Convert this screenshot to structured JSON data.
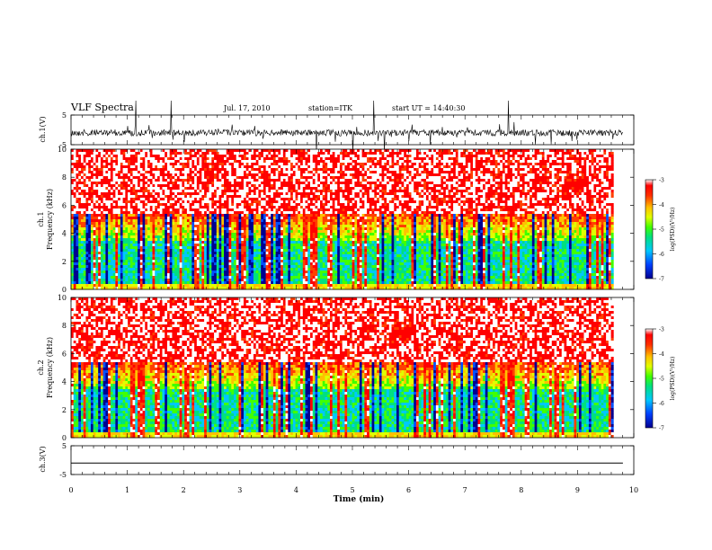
{
  "header": {
    "title": "VLF Spectra",
    "date": "Jul. 17, 2010",
    "station": "station=ITK",
    "start": "start UT = 14:40:30"
  },
  "chart_data": [
    {
      "type": "line",
      "panel": "ch1-waveform",
      "ylabel": "ch.1(V)",
      "ylim": [
        -5,
        5
      ],
      "yticks": [
        "5",
        "-5"
      ],
      "xlim": [
        0,
        10
      ],
      "signal": "noisy waveform near -1 V with frequent impulsive spikes",
      "baseline": -1
    },
    {
      "type": "heatmap",
      "panel": "ch1-spectrogram",
      "ylabel_top": "ch.1",
      "ylabel": "Frequency (kHz)",
      "ylim": [
        0,
        10
      ],
      "yticks": [
        "0",
        "2",
        "4",
        "6",
        "8",
        "10"
      ],
      "xlim": [
        0,
        9.83
      ],
      "colorbar": {
        "label": "log(PSD)(V²/Hz)",
        "range": [
          -7,
          -3
        ],
        "ticks": [
          "-3",
          "-4",
          "-5",
          "-6",
          "-7"
        ]
      }
    },
    {
      "type": "heatmap",
      "panel": "ch2-spectrogram",
      "ylabel_top": "ch.2",
      "ylabel": "Frequency (kHz)",
      "ylim": [
        0,
        10
      ],
      "yticks": [
        "0",
        "2",
        "4",
        "6",
        "8",
        "10"
      ],
      "xlim": [
        0,
        9.83
      ],
      "colorbar": {
        "label": "log(PSD)(V²/Hz)",
        "range": [
          -7,
          -3
        ],
        "ticks": [
          "-3",
          "-4",
          "-5",
          "-6",
          "-7"
        ]
      }
    },
    {
      "type": "line",
      "panel": "ch3-waveform",
      "ylabel": "ch.3(V)",
      "ylim": [
        -5,
        5
      ],
      "yticks": [
        "5",
        "-5"
      ],
      "xlim": [
        0,
        10
      ],
      "signal": "flat trace",
      "baseline": -1
    }
  ],
  "x_axis": {
    "label": "Time (min)",
    "range": [
      0,
      10
    ],
    "ticks": [
      "0",
      "1",
      "2",
      "3",
      "4",
      "5",
      "6",
      "7",
      "8",
      "9",
      "10"
    ]
  },
  "colors": {
    "colormap": [
      "#000090",
      "#0050ff",
      "#00c8ff",
      "#00e080",
      "#40ff00",
      "#e0ff00",
      "#ffc000",
      "#ff4000",
      "#ff0000",
      "#ffffff"
    ]
  }
}
